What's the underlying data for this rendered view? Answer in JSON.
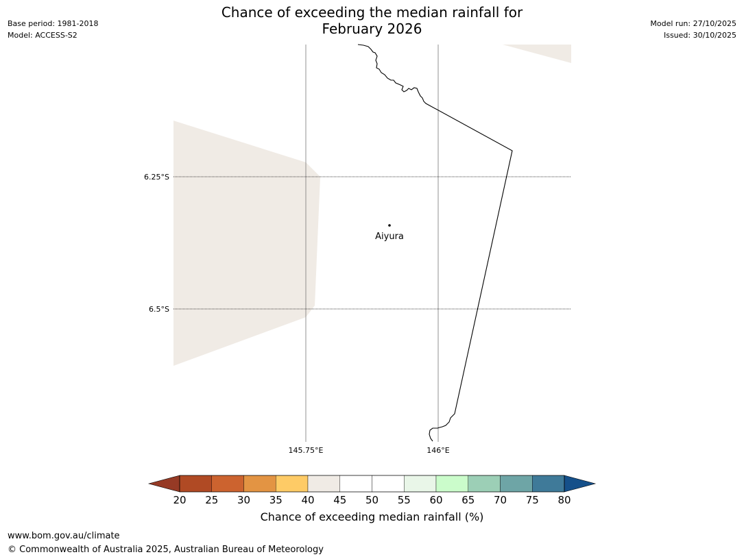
{
  "header": {
    "title_line1": "Chance of exceeding the median rainfall for",
    "title_line2": "February 2026",
    "base_period": "Base period: 1981-2018",
    "model": "Model: ACCESS-S2",
    "model_run": "Model run: 27/10/2025",
    "issued": "Issued: 30/10/2025"
  },
  "map": {
    "lat_labels": [
      "6.25°S",
      "6.5°S"
    ],
    "lon_labels": [
      "145.75°E",
      "146°E"
    ],
    "place": {
      "name": "Aiyura"
    },
    "colors": {
      "shaded_region": "#f0ebe5",
      "coastline": "#000000",
      "gridline": "#000000"
    }
  },
  "colorbar": {
    "title": "Chance of exceeding median rainfall (%)",
    "ticks": [
      "20",
      "25",
      "30",
      "35",
      "40",
      "45",
      "50",
      "55",
      "60",
      "65",
      "70",
      "75",
      "80"
    ],
    "under_color": "#963a25",
    "over_color": "#15508a",
    "segment_colors": [
      "#b04a24",
      "#cc632f",
      "#e39443",
      "#fecb66",
      "#f0ebe5",
      "#ffffff",
      "#ffffff",
      "#e9f6e8",
      "#cbfccb",
      "#9ccfb6",
      "#6ea5a6",
      "#3f7a99"
    ]
  },
  "footer": {
    "url": "www.bom.gov.au/climate",
    "copyright": "© Commonwealth of Australia 2025, Australian Bureau of Meteorology"
  }
}
